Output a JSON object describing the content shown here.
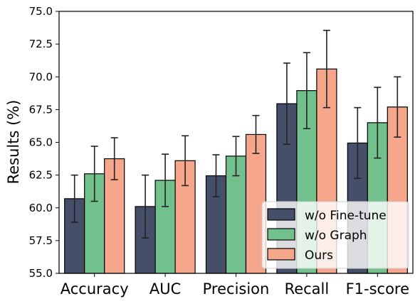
{
  "chart_data": {
    "type": "bar",
    "title": "",
    "xlabel": "",
    "ylabel": "Results (%)",
    "ylim": [
      55.0,
      75.0
    ],
    "yticks": [
      "55.0",
      "57.5",
      "60.0",
      "62.5",
      "65.0",
      "67.5",
      "70.0",
      "72.5",
      "75.0"
    ],
    "categories": [
      "Accuracy",
      "AUC",
      "Precision",
      "Recall",
      "F1-score"
    ],
    "series": [
      {
        "name": "w/o Fine-tune",
        "color": "#454f6a",
        "values": [
          60.7,
          60.1,
          62.45,
          67.95,
          64.95
        ],
        "errors": [
          1.8,
          2.4,
          1.6,
          3.1,
          2.7
        ]
      },
      {
        "name": "w/o Graph",
        "color": "#72c08b",
        "values": [
          62.6,
          62.1,
          63.95,
          68.95,
          66.5
        ],
        "errors": [
          2.1,
          2.0,
          1.5,
          2.9,
          2.7
        ]
      },
      {
        "name": "Ours",
        "color": "#f5a68b",
        "values": [
          63.75,
          63.6,
          65.6,
          70.6,
          67.7
        ],
        "errors": [
          1.6,
          1.9,
          1.45,
          2.95,
          2.3
        ]
      }
    ],
    "legend_position": "lower-right",
    "grid": false,
    "error_bars": true
  }
}
